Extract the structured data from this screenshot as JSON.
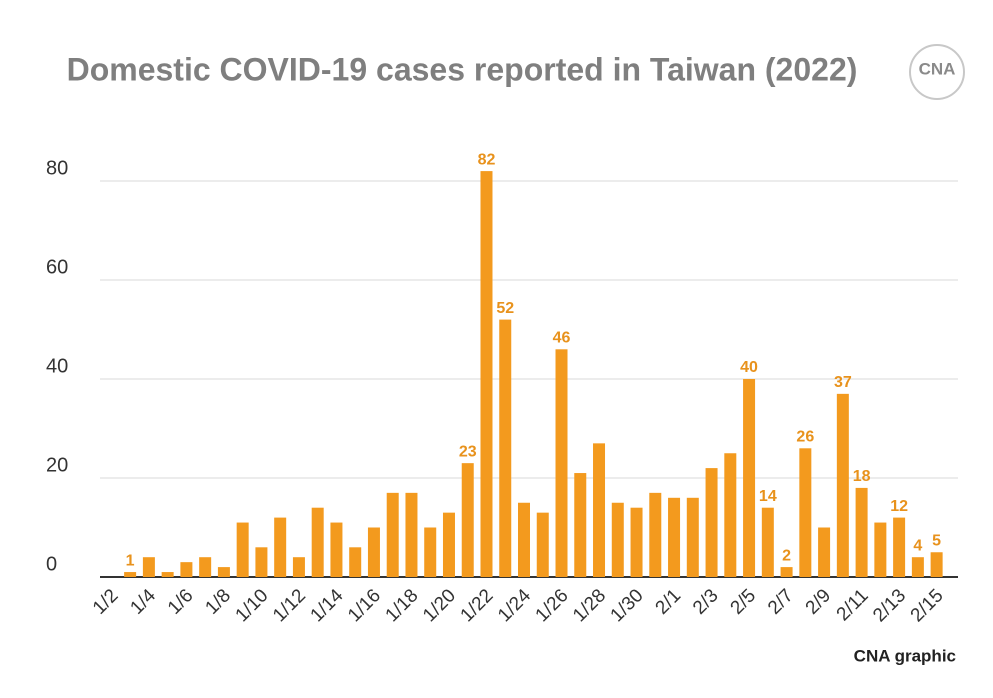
{
  "chart_data": {
    "type": "bar",
    "title": "Domestic COVID-19 cases reported in Taiwan (2022)",
    "source": "CNA graphic",
    "logo": "CNA",
    "categories": [
      "1/2",
      null,
      "1/4",
      null,
      "1/6",
      null,
      "1/8",
      null,
      "1/10",
      null,
      "1/12",
      null,
      "1/14",
      null,
      "1/16",
      null,
      "1/18",
      null,
      "1/20",
      null,
      "1/22",
      null,
      "1/24",
      null,
      "1/26",
      null,
      "1/28",
      null,
      "1/30",
      null,
      "2/1",
      null,
      "2/3",
      null,
      "2/5",
      null,
      "2/7",
      null,
      "2/9",
      null,
      "2/11",
      null,
      "2/13",
      null,
      "2/15"
    ],
    "values": [
      0,
      1,
      4,
      1,
      3,
      4,
      2,
      11,
      6,
      12,
      4,
      14,
      11,
      6,
      10,
      17,
      17,
      10,
      13,
      23,
      82,
      52,
      15,
      13,
      46,
      21,
      27,
      15,
      14,
      17,
      16,
      16,
      22,
      25,
      40,
      14,
      2,
      26,
      10,
      37,
      18,
      11,
      12,
      4,
      5
    ],
    "value_labels": [
      null,
      "1",
      null,
      null,
      null,
      null,
      null,
      null,
      null,
      null,
      null,
      null,
      null,
      null,
      null,
      null,
      null,
      null,
      null,
      "23",
      "82",
      "52",
      null,
      null,
      "46",
      null,
      null,
      null,
      null,
      null,
      null,
      null,
      null,
      null,
      "40",
      "14",
      "2",
      "26",
      null,
      "37",
      "18",
      null,
      "12",
      "4",
      "5"
    ],
    "color": "#f39a1e",
    "ylim": [
      0,
      80
    ],
    "yticks": [
      0,
      20,
      40,
      60,
      80
    ],
    "grid": true
  }
}
